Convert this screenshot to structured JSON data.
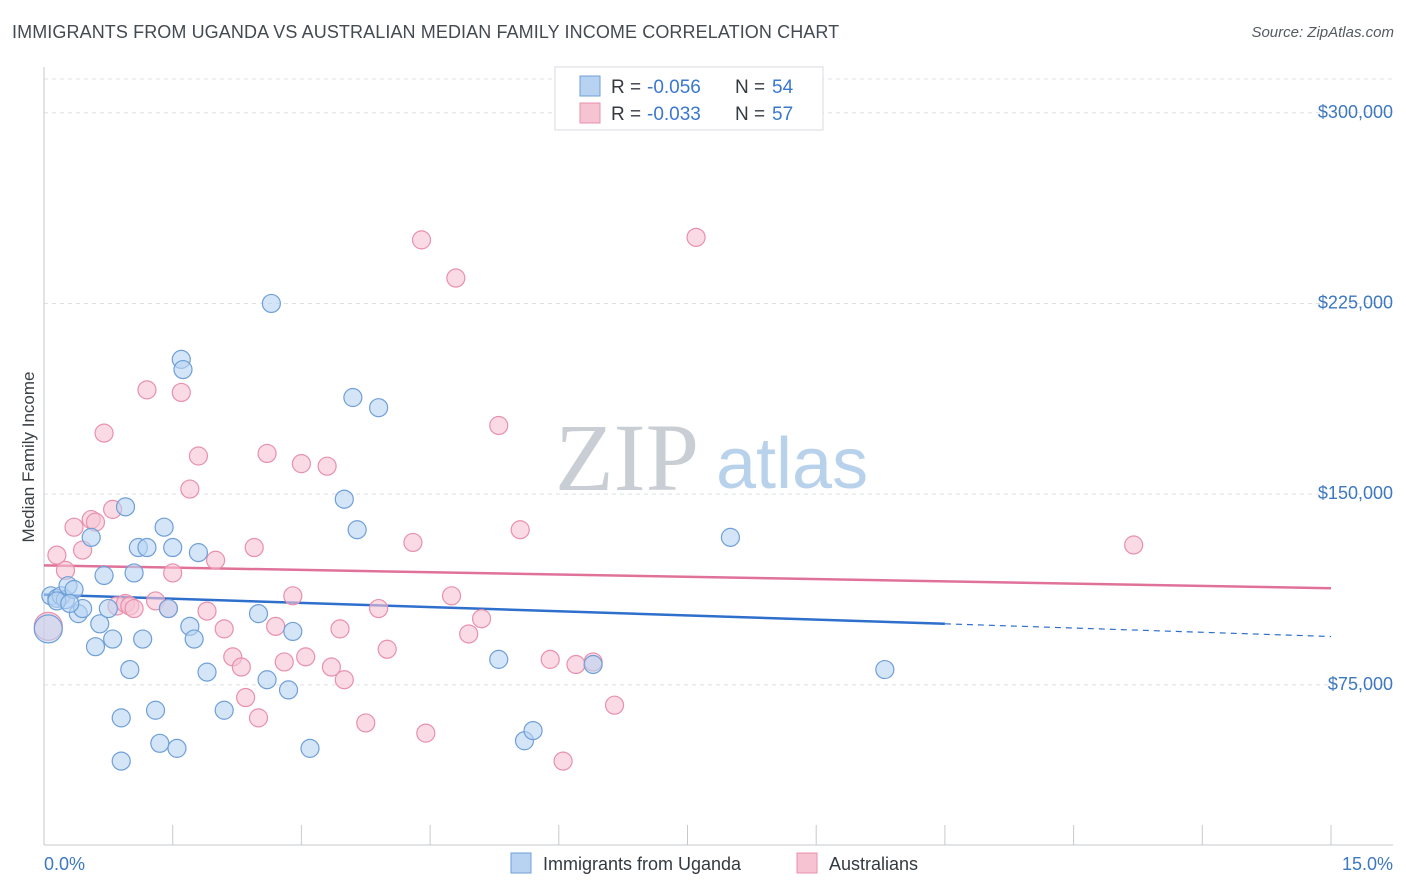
{
  "title": "IMMIGRANTS FROM UGANDA VS AUSTRALIAN MEDIAN FAMILY INCOME CORRELATION CHART",
  "source": "Source: ZipAtlas.com",
  "watermark": {
    "zip": "ZIP",
    "atlas": "atlas"
  },
  "colors": {
    "uganda_fill": "#b8d3f2",
    "uganda_stroke": "#6f9fd8",
    "uganda_line": "#2f6fcc",
    "aus_fill": "#f6c3d3",
    "aus_stroke": "#e890ad",
    "aus_line": "#e0729a",
    "grid": "#dde0e4",
    "tick_text": "#3d78c0"
  },
  "legend": {
    "rows": [
      {
        "r_label": "R = ",
        "r_value": "-0.056",
        "n_label": "N = ",
        "n_value": "54"
      },
      {
        "r_label": "R = ",
        "r_value": "-0.033",
        "n_label": "N = ",
        "n_value": "57"
      }
    ]
  },
  "bottom_legend": [
    "Immigrants from Uganda",
    "Australians"
  ],
  "chart_data": {
    "type": "scatter",
    "title": "IMMIGRANTS FROM UGANDA VS AUSTRALIAN MEDIAN FAMILY INCOME CORRELATION CHART",
    "xlabel": "",
    "ylabel": "Median Family Income",
    "xlim": [
      0,
      15
    ],
    "ylim": [
      12000,
      318000
    ],
    "x_tick_labels": [
      "0.0%",
      "15.0%"
    ],
    "y_ticks": [
      75000,
      150000,
      225000,
      300000
    ],
    "y_tick_labels": [
      "$75,000",
      "$150,000",
      "$225,000",
      "$300,000"
    ],
    "grid": true,
    "legend_position": "top-center",
    "series": [
      {
        "name": "Immigrants from Uganda",
        "r": -0.056,
        "n": 54,
        "trend": {
          "x0": 0,
          "y0": 110500,
          "x1": 10.5,
          "y1": 99000,
          "dashed_to_x": 15,
          "dashed_to_y": 94000
        },
        "points": [
          [
            0.05,
            97000
          ],
          [
            0.08,
            110000
          ],
          [
            0.15,
            109000
          ],
          [
            0.2,
            110000
          ],
          [
            0.25,
            108500
          ],
          [
            0.28,
            114000
          ],
          [
            0.35,
            112500
          ],
          [
            0.4,
            103000
          ],
          [
            0.45,
            105000
          ],
          [
            0.55,
            133000
          ],
          [
            0.6,
            90000
          ],
          [
            0.65,
            99000
          ],
          [
            0.7,
            118000
          ],
          [
            0.75,
            105000
          ],
          [
            0.8,
            93000
          ],
          [
            0.9,
            62000
          ],
          [
            0.95,
            145000
          ],
          [
            1.0,
            81000
          ],
          [
            1.05,
            119000
          ],
          [
            1.1,
            129000
          ],
          [
            1.15,
            93000
          ],
          [
            1.2,
            129000
          ],
          [
            1.3,
            65000
          ],
          [
            1.35,
            52000
          ],
          [
            1.4,
            137000
          ],
          [
            1.45,
            105000
          ],
          [
            1.5,
            129000
          ],
          [
            1.55,
            50000
          ],
          [
            1.6,
            203000
          ],
          [
            1.62,
            199000
          ],
          [
            1.7,
            98000
          ],
          [
            1.75,
            93000
          ],
          [
            1.8,
            127000
          ],
          [
            1.9,
            80000
          ],
          [
            2.1,
            65000
          ],
          [
            2.5,
            103000
          ],
          [
            2.6,
            77000
          ],
          [
            2.65,
            225000
          ],
          [
            2.85,
            73000
          ],
          [
            2.9,
            96000
          ],
          [
            3.1,
            50000
          ],
          [
            3.5,
            148000
          ],
          [
            3.6,
            188000
          ],
          [
            3.65,
            136000
          ],
          [
            3.9,
            184000
          ],
          [
            5.3,
            85000
          ],
          [
            5.6,
            53000
          ],
          [
            5.7,
            57000
          ],
          [
            6.4,
            83000
          ],
          [
            8.0,
            133000
          ],
          [
            9.8,
            81000
          ],
          [
            0.9,
            45000
          ],
          [
            0.15,
            108000
          ],
          [
            0.3,
            107000
          ]
        ]
      },
      {
        "name": "Australians",
        "r": -0.033,
        "n": 57,
        "trend": {
          "x0": 0,
          "y0": 122000,
          "x1": 15,
          "y1": 113000
        },
        "points": [
          [
            0.05,
            98000
          ],
          [
            0.15,
            126000
          ],
          [
            0.25,
            120000
          ],
          [
            0.35,
            137000
          ],
          [
            0.45,
            128000
          ],
          [
            0.55,
            140000
          ],
          [
            0.6,
            139000
          ],
          [
            0.7,
            174000
          ],
          [
            0.8,
            144000
          ],
          [
            0.85,
            106000
          ],
          [
            0.95,
            107000
          ],
          [
            1.0,
            106000
          ],
          [
            1.05,
            105000
          ],
          [
            1.2,
            191000
          ],
          [
            1.3,
            108000
          ],
          [
            1.45,
            105000
          ],
          [
            1.5,
            119000
          ],
          [
            1.6,
            190000
          ],
          [
            1.7,
            152000
          ],
          [
            1.8,
            165000
          ],
          [
            1.9,
            104000
          ],
          [
            2.0,
            124000
          ],
          [
            2.1,
            97000
          ],
          [
            2.2,
            86000
          ],
          [
            2.3,
            82000
          ],
          [
            2.35,
            70000
          ],
          [
            2.45,
            129000
          ],
          [
            2.5,
            62000
          ],
          [
            2.6,
            166000
          ],
          [
            2.7,
            98000
          ],
          [
            2.8,
            84000
          ],
          [
            2.9,
            110000
          ],
          [
            3.0,
            162000
          ],
          [
            3.05,
            86000
          ],
          [
            3.3,
            161000
          ],
          [
            3.35,
            82000
          ],
          [
            3.45,
            97000
          ],
          [
            3.5,
            77000
          ],
          [
            3.75,
            60000
          ],
          [
            3.9,
            105000
          ],
          [
            4.0,
            89000
          ],
          [
            4.3,
            131000
          ],
          [
            4.4,
            250000
          ],
          [
            4.45,
            56000
          ],
          [
            4.75,
            110000
          ],
          [
            4.8,
            235000
          ],
          [
            4.95,
            95000
          ],
          [
            5.1,
            101000
          ],
          [
            5.3,
            177000
          ],
          [
            5.55,
            136000
          ],
          [
            5.9,
            85000
          ],
          [
            6.05,
            45000
          ],
          [
            6.4,
            84000
          ],
          [
            6.65,
            67000
          ],
          [
            7.6,
            251000
          ],
          [
            12.7,
            130000
          ],
          [
            6.2,
            83000
          ]
        ]
      }
    ]
  }
}
